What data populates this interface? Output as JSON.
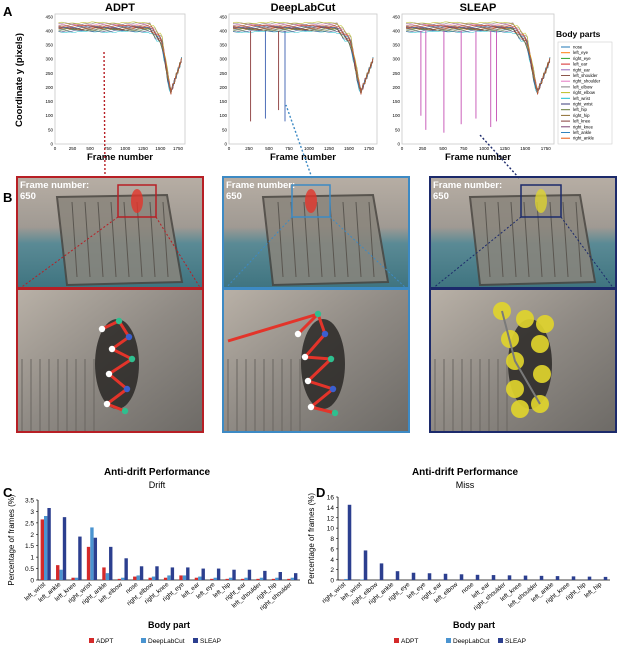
{
  "panel_letters": {
    "a": "A",
    "b": "B",
    "c": "C",
    "d": "D"
  },
  "colors": {
    "adpt": "#d42a2a",
    "deeplabcut": "#4a94d0",
    "sleap": "#2c3f8f",
    "frame_adpt": "#b71f25",
    "frame_dlc": "#3d8ac4",
    "frame_sleap": "#1c2a6b"
  },
  "trajectory": {
    "titles": [
      "ADPT",
      "DeepLabCut",
      "SLEAP"
    ],
    "ylabel": "Coordinate y (pixels)",
    "xlabel": "Frame number",
    "y_ticks": [
      "0",
      "50",
      "100",
      "150",
      "200",
      "250",
      "300",
      "350",
      "400",
      "450"
    ],
    "x_ticks": [
      "0",
      "250",
      "500",
      "750",
      "1000",
      "1250",
      "1500",
      "1750"
    ],
    "x_range": [
      0,
      1850
    ],
    "y_range": [
      0,
      460
    ],
    "legend_title": "Body parts",
    "body_parts": [
      "nose",
      "left_eye",
      "right_eye",
      "left_ear",
      "right_ear",
      "left_shoulder",
      "right_shoulder",
      "left_elbow",
      "right_elbow",
      "left_wrist",
      "right_wrist",
      "left_hip",
      "right_hip",
      "left_knee",
      "right_knee",
      "left_ankle",
      "right_ankle"
    ],
    "part_colors": [
      "#1f77b4",
      "#ff7f0e",
      "#2ca02c",
      "#d62728",
      "#9467bd",
      "#8c564b",
      "#e377c2",
      "#7f7f7f",
      "#bcbd22",
      "#17becf",
      "#393b79",
      "#637939",
      "#8c6d31",
      "#843c39",
      "#7b4173",
      "#3182bd",
      "#e6550d"
    ]
  },
  "frames": {
    "label": "Frame number:",
    "number": "650"
  },
  "chart_data": [
    {
      "type": "bar",
      "title": "Anti-drift Performance",
      "subtitle": "Drift",
      "xlabel": "Body part",
      "ylabel": "Percentage of frames (%)",
      "ylim": [
        0,
        3.5
      ],
      "y_ticks": [
        "0",
        "0.5",
        "1",
        "1.5",
        "2",
        "2.5",
        "3",
        "3.5"
      ],
      "categories": [
        "left_wrist",
        "left_ankle",
        "left_knee",
        "right_wrist",
        "right_ankle",
        "left_elbow",
        "nose",
        "right_elbow",
        "right_knee",
        "right_eye",
        "left_ear",
        "left_eye",
        "left_hip",
        "right_ear",
        "left_shoulder",
        "right_hip",
        "right_shoulder"
      ],
      "series": [
        {
          "name": "ADPT",
          "values": [
            2.65,
            0.65,
            0.1,
            1.45,
            0.55,
            0.05,
            0.15,
            0.1,
            0.1,
            0.2,
            0.1,
            0.05,
            0.05,
            0.05,
            0.05,
            0.05,
            0.05
          ]
        },
        {
          "name": "DeepLabCut",
          "values": [
            2.8,
            0.45,
            0.1,
            2.3,
            0.3,
            0.1,
            0.2,
            0.15,
            0.2,
            0.2,
            0.15,
            0.1,
            0.1,
            0.1,
            0.1,
            0.1,
            0.1
          ]
        },
        {
          "name": "SLEAP",
          "values": [
            3.15,
            2.75,
            1.9,
            1.85,
            1.45,
            0.95,
            0.6,
            0.6,
            0.55,
            0.55,
            0.5,
            0.5,
            0.45,
            0.45,
            0.4,
            0.35,
            0.3
          ]
        }
      ],
      "legend": "bottom-center"
    },
    {
      "type": "bar",
      "title": "Anti-drift Performance",
      "subtitle": "Miss",
      "xlabel": "Body part",
      "ylabel": "Percentage of frames (%)",
      "ylim": [
        0,
        16
      ],
      "y_ticks": [
        "0",
        "2",
        "4",
        "6",
        "8",
        "10",
        "12",
        "14",
        "16"
      ],
      "categories": [
        "right_wrist",
        "left_wrist",
        "right_elbow",
        "right_ankle",
        "right_eye",
        "left_eye",
        "right_ear",
        "left_elbow",
        "nose",
        "left_ear",
        "right_shoulder",
        "left_knee",
        "left_shoulder",
        "left_ankle",
        "right_knee",
        "right_hip",
        "left_hip"
      ],
      "series": [
        {
          "name": "ADPT",
          "values": [
            0.05,
            0,
            0,
            0,
            0,
            0,
            0,
            0,
            0,
            0,
            0,
            0,
            0,
            0,
            0,
            0,
            0
          ]
        },
        {
          "name": "DeepLabCut",
          "values": [
            0.2,
            0.1,
            0,
            0,
            0,
            0,
            0,
            0,
            0,
            0,
            0,
            0,
            0,
            0,
            0,
            0,
            0
          ]
        },
        {
          "name": "SLEAP",
          "values": [
            14.5,
            5.7,
            3.2,
            1.7,
            1.4,
            1.3,
            1.2,
            1.1,
            1.0,
            0.95,
            0.9,
            0.85,
            0.8,
            0.75,
            0.7,
            0.65,
            0.6
          ]
        }
      ],
      "legend": "bottom-center"
    }
  ]
}
